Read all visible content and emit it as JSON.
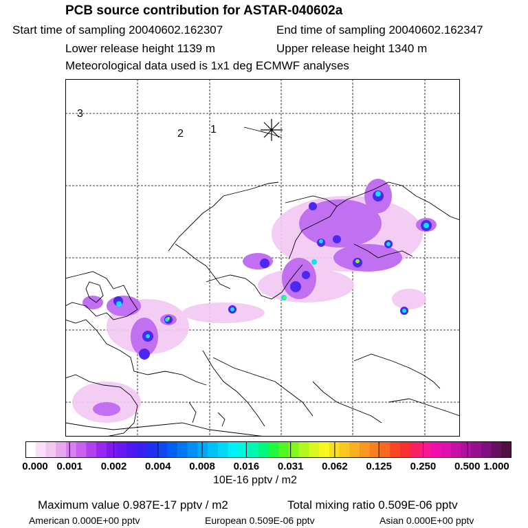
{
  "header": {
    "title": "PCB source contribution for ASTAR-040602a",
    "start": "Start time of sampling 20040602.162307",
    "end": "End time of sampling 20040602.162347",
    "lower": "Lower release height 1139 m",
    "upper": "Upper release height 1340 m",
    "met": "Meteorological data used is 1x1 deg ECMWF analyses"
  },
  "map": {
    "labels": [
      "3",
      "2",
      "1"
    ],
    "release_marker": "star-icon",
    "coastline_color": "#000000",
    "grid_color": "#000000"
  },
  "legend": {
    "ticks": [
      "0.000",
      "0.001",
      "0.002",
      "0.004",
      "0.008",
      "0.016",
      "0.031",
      "0.062",
      "0.125",
      "0.250",
      "0.500",
      "1.000"
    ],
    "units": "10E-16 pptv / m2",
    "colors": [
      "#ffffff",
      "#f8e0f8",
      "#f0c8f0",
      "#e8a8f0",
      "#d880f0",
      "#c860f0",
      "#b040f0",
      "#9828f0",
      "#8018f0",
      "#6818f0",
      "#5018f0",
      "#3820f0",
      "#2030f0",
      "#1048f0",
      "#0060f0",
      "#0078f0",
      "#0090f8",
      "#00a8f8",
      "#00c0f8",
      "#00d8f8",
      "#00f0f8",
      "#00f8e0",
      "#00f8b0",
      "#00f880",
      "#20f840",
      "#50f820",
      "#80f820",
      "#b0f820",
      "#d8f820",
      "#f8f820",
      "#f8e020",
      "#f8c820",
      "#f8b020",
      "#f89820",
      "#f88020",
      "#f86820",
      "#f84820",
      "#f83030",
      "#f82060",
      "#f81890",
      "#f010a8",
      "#e010b0",
      "#c810a8",
      "#b010a0",
      "#981090",
      "#801080",
      "#681060",
      "#501040"
    ]
  },
  "footer": {
    "max": "Maximum value  0.987E-17 pptv / m2",
    "total": "Total mixing ratio  0.509E-06 pptv",
    "american": "American  0.000E+00 pptv",
    "european": "European  0.509E-06 pptv",
    "asian": "Asian  0.000E+00 pptv"
  }
}
